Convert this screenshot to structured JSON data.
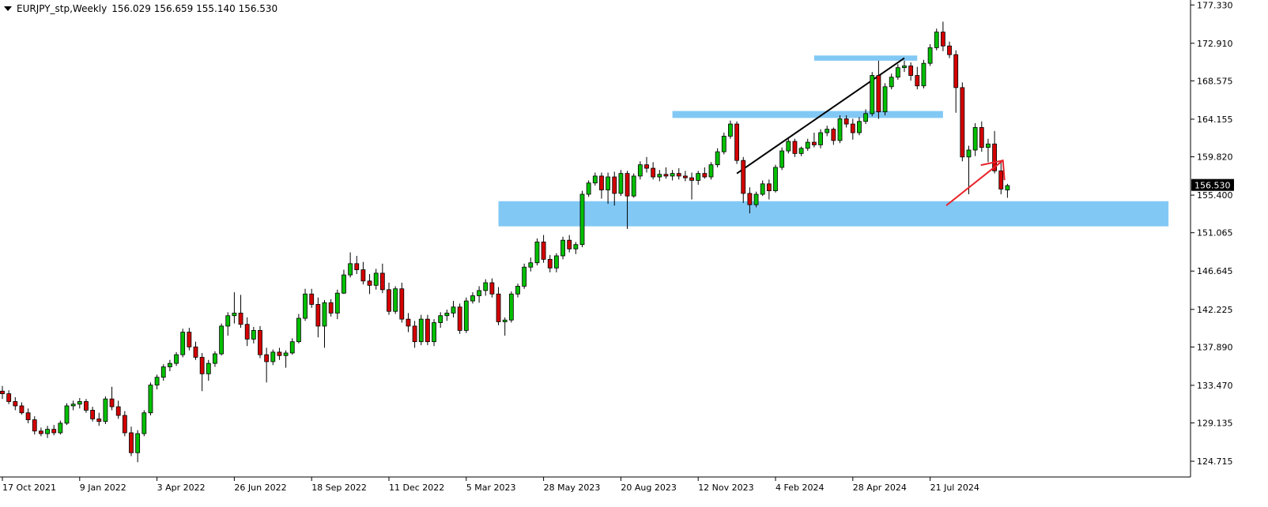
{
  "header": {
    "symbol": "EURJPY_stp,Weekly",
    "ohlc": "156.029 156.659 155.140 156.530"
  },
  "colors": {
    "bull": "#00c000",
    "bear": "#d40000",
    "zone": "#82c8f5",
    "trendline": "#000000",
    "arrow": "#e8232a",
    "price_tag": "#000000"
  },
  "chart_data": {
    "type": "candlestick",
    "title": "EURJPY_stp,Weekly",
    "ylim": [
      122.9,
      177.9
    ],
    "y_ticks": [
      "177.330",
      "172.910",
      "168.575",
      "164.155",
      "159.820",
      "155.400",
      "151.065",
      "146.645",
      "142.225",
      "137.890",
      "133.470",
      "129.135",
      "124.715"
    ],
    "x_ticks": [
      {
        "label": "17 Oct 2021",
        "index": 0
      },
      {
        "label": "9 Jan 2022",
        "index": 12
      },
      {
        "label": "3 Apr 2022",
        "index": 24
      },
      {
        "label": "26 Jun 2022",
        "index": 36
      },
      {
        "label": "18 Sep 2022",
        "index": 48
      },
      {
        "label": "11 Dec 2022",
        "index": 60
      },
      {
        "label": "5 Mar 2023",
        "index": 72
      },
      {
        "label": "28 May 2023",
        "index": 84
      },
      {
        "label": "20 Aug 2023",
        "index": 96
      },
      {
        "label": "12 Nov 2023",
        "index": 108
      },
      {
        "label": "4 Feb 2024",
        "index": 120
      },
      {
        "label": "28 Apr 2024",
        "index": 132
      },
      {
        "label": "21 Jul 2024",
        "index": 144
      }
    ],
    "current_price": "156.530",
    "candles": [
      [
        132.8,
        133.4,
        131.9,
        132.5
      ],
      [
        132.5,
        132.9,
        131.3,
        131.6
      ],
      [
        131.6,
        132.1,
        130.6,
        131.1
      ],
      [
        131.1,
        131.5,
        130.1,
        130.3
      ],
      [
        130.3,
        130.8,
        129.1,
        129.5
      ],
      [
        129.5,
        129.9,
        127.8,
        128.2
      ],
      [
        128.2,
        128.6,
        127.6,
        127.9
      ],
      [
        127.9,
        128.8,
        127.4,
        128.4
      ],
      [
        128.4,
        128.9,
        127.7,
        128.0
      ],
      [
        128.0,
        129.4,
        127.8,
        129.1
      ],
      [
        129.1,
        131.4,
        128.9,
        131.1
      ],
      [
        131.1,
        131.7,
        130.6,
        131.3
      ],
      [
        131.3,
        132.0,
        130.8,
        131.6
      ],
      [
        131.6,
        131.9,
        130.3,
        130.6
      ],
      [
        130.6,
        131.0,
        129.3,
        129.6
      ],
      [
        129.6,
        130.3,
        128.8,
        129.3
      ],
      [
        129.3,
        132.2,
        129.0,
        131.9
      ],
      [
        131.9,
        133.3,
        130.6,
        131.0
      ],
      [
        131.0,
        131.7,
        129.6,
        130.0
      ],
      [
        130.0,
        130.5,
        127.6,
        128.0
      ],
      [
        128.0,
        128.7,
        125.3,
        125.7
      ],
      [
        125.7,
        128.3,
        124.6,
        127.9
      ],
      [
        127.9,
        130.6,
        127.6,
        130.3
      ],
      [
        130.3,
        133.8,
        130.0,
        133.5
      ],
      [
        133.5,
        134.7,
        133.0,
        134.4
      ],
      [
        134.4,
        135.9,
        134.0,
        135.6
      ],
      [
        135.6,
        136.4,
        135.1,
        136.0
      ],
      [
        136.0,
        137.3,
        135.7,
        137.0
      ],
      [
        137.0,
        140.0,
        136.7,
        139.6
      ],
      [
        139.6,
        140.1,
        137.5,
        137.9
      ],
      [
        137.9,
        138.5,
        136.4,
        136.7
      ],
      [
        136.7,
        137.2,
        132.8,
        134.8
      ],
      [
        134.8,
        136.4,
        134.0,
        136.0
      ],
      [
        136.0,
        137.4,
        135.6,
        137.1
      ],
      [
        137.1,
        140.6,
        136.9,
        140.3
      ],
      [
        140.3,
        141.9,
        139.2,
        141.5
      ],
      [
        141.5,
        144.2,
        140.6,
        141.8
      ],
      [
        141.8,
        143.9,
        140.1,
        140.5
      ],
      [
        140.5,
        141.3,
        138.0,
        138.8
      ],
      [
        138.8,
        140.2,
        138.3,
        139.8
      ],
      [
        139.8,
        140.3,
        136.6,
        137.0
      ],
      [
        137.0,
        137.8,
        133.8,
        136.2
      ],
      [
        136.2,
        137.6,
        135.8,
        137.3
      ],
      [
        137.3,
        137.8,
        136.4,
        136.9
      ],
      [
        136.9,
        137.5,
        135.5,
        137.2
      ],
      [
        137.2,
        138.9,
        137.0,
        138.5
      ],
      [
        138.5,
        141.7,
        138.3,
        141.2
      ],
      [
        141.2,
        144.6,
        140.9,
        144.0
      ],
      [
        144.0,
        144.6,
        142.4,
        142.8
      ],
      [
        142.8,
        143.6,
        139.0,
        140.3
      ],
      [
        140.3,
        143.3,
        137.8,
        143.0
      ],
      [
        143.0,
        143.4,
        141.4,
        141.8
      ],
      [
        141.8,
        144.5,
        141.1,
        144.1
      ],
      [
        144.1,
        146.8,
        144.0,
        146.2
      ],
      [
        146.2,
        148.8,
        145.9,
        147.5
      ],
      [
        147.5,
        148.4,
        146.3,
        146.8
      ],
      [
        146.8,
        147.7,
        145.1,
        145.5
      ],
      [
        145.5,
        146.3,
        144.0,
        145.0
      ],
      [
        145.0,
        146.9,
        144.5,
        146.4
      ],
      [
        146.4,
        147.5,
        144.1,
        144.5
      ],
      [
        144.5,
        145.3,
        141.6,
        142.0
      ],
      [
        142.0,
        144.9,
        141.7,
        144.6
      ],
      [
        144.6,
        145.3,
        140.7,
        141.1
      ],
      [
        141.1,
        141.8,
        139.6,
        140.3
      ],
      [
        140.3,
        140.9,
        137.8,
        138.5
      ],
      [
        138.5,
        141.6,
        138.1,
        141.1
      ],
      [
        141.1,
        141.6,
        138.1,
        138.5
      ],
      [
        138.5,
        141.1,
        138.0,
        140.7
      ],
      [
        140.7,
        141.9,
        140.1,
        141.5
      ],
      [
        141.5,
        142.2,
        140.9,
        141.8
      ],
      [
        141.8,
        143.2,
        141.3,
        142.5
      ],
      [
        142.5,
        142.9,
        139.4,
        139.8
      ],
      [
        139.8,
        143.6,
        139.5,
        143.2
      ],
      [
        143.2,
        144.2,
        142.9,
        143.8
      ],
      [
        143.8,
        144.9,
        143.0,
        144.4
      ],
      [
        144.4,
        145.7,
        143.8,
        145.3
      ],
      [
        145.3,
        145.8,
        143.6,
        144.0
      ],
      [
        144.0,
        144.8,
        140.4,
        140.8
      ],
      [
        140.8,
        141.3,
        139.2,
        141.0
      ],
      [
        141.0,
        144.3,
        140.7,
        144.0
      ],
      [
        144.0,
        145.2,
        143.6,
        144.9
      ],
      [
        144.9,
        147.5,
        144.6,
        147.1
      ],
      [
        147.1,
        148.2,
        146.6,
        147.6
      ],
      [
        147.6,
        150.4,
        147.3,
        150.0
      ],
      [
        150.0,
        150.8,
        147.6,
        148.0
      ],
      [
        148.0,
        148.5,
        146.5,
        147.0
      ],
      [
        147.0,
        148.7,
        146.5,
        148.4
      ],
      [
        148.4,
        150.6,
        148.0,
        150.2
      ],
      [
        150.2,
        150.8,
        148.8,
        149.2
      ],
      [
        149.2,
        150.0,
        148.6,
        149.7
      ],
      [
        149.7,
        155.9,
        149.4,
        155.5
      ],
      [
        155.5,
        157.1,
        155.2,
        156.8
      ],
      [
        156.8,
        158.0,
        156.5,
        157.6
      ],
      [
        157.6,
        158.0,
        155.0,
        156.0
      ],
      [
        156.0,
        158.0,
        154.4,
        157.5
      ],
      [
        157.5,
        158.1,
        154.2,
        155.6
      ],
      [
        155.6,
        158.3,
        155.3,
        157.9
      ],
      [
        157.9,
        158.2,
        151.5,
        155.3
      ],
      [
        155.3,
        157.9,
        155.1,
        157.6
      ],
      [
        157.6,
        159.3,
        157.2,
        158.9
      ],
      [
        158.9,
        159.8,
        158.0,
        158.5
      ],
      [
        158.5,
        159.2,
        157.2,
        157.5
      ],
      [
        157.5,
        158.3,
        157.0,
        157.8
      ],
      [
        157.8,
        158.6,
        157.3,
        157.6
      ],
      [
        157.6,
        158.3,
        157.1,
        157.9
      ],
      [
        157.9,
        158.5,
        157.2,
        157.6
      ],
      [
        157.6,
        158.2,
        157.0,
        157.4
      ],
      [
        157.4,
        158.0,
        154.9,
        157.1
      ],
      [
        157.1,
        158.2,
        156.6,
        157.9
      ],
      [
        157.9,
        158.6,
        157.3,
        157.5
      ],
      [
        157.5,
        159.2,
        157.2,
        158.9
      ],
      [
        158.9,
        160.8,
        158.6,
        160.4
      ],
      [
        160.4,
        162.6,
        160.1,
        162.2
      ],
      [
        162.2,
        164.0,
        161.9,
        163.6
      ],
      [
        163.6,
        163.9,
        159.0,
        159.4
      ],
      [
        159.4,
        159.8,
        154.5,
        155.6
      ],
      [
        155.6,
        156.3,
        153.3,
        154.3
      ],
      [
        154.3,
        155.8,
        154.0,
        155.5
      ],
      [
        155.5,
        157.1,
        155.3,
        156.7
      ],
      [
        156.7,
        157.2,
        154.9,
        155.9
      ],
      [
        155.9,
        158.9,
        155.7,
        158.6
      ],
      [
        158.6,
        160.9,
        158.3,
        160.5
      ],
      [
        160.5,
        162.0,
        160.2,
        161.6
      ],
      [
        161.6,
        161.9,
        159.8,
        160.2
      ],
      [
        160.2,
        161.0,
        159.9,
        160.8
      ],
      [
        160.8,
        161.9,
        160.5,
        161.5
      ],
      [
        161.5,
        162.6,
        160.9,
        161.2
      ],
      [
        161.2,
        163.0,
        160.8,
        162.6
      ],
      [
        162.6,
        163.4,
        162.2,
        163.0
      ],
      [
        163.0,
        163.2,
        161.2,
        161.7
      ],
      [
        161.7,
        164.6,
        161.4,
        164.2
      ],
      [
        164.2,
        164.6,
        163.2,
        163.6
      ],
      [
        163.6,
        164.2,
        161.8,
        162.6
      ],
      [
        162.6,
        164.4,
        162.3,
        163.9
      ],
      [
        163.9,
        165.3,
        163.6,
        164.8
      ],
      [
        164.8,
        169.6,
        164.5,
        169.2
      ],
      [
        169.2,
        170.9,
        164.2,
        165.0
      ],
      [
        165.0,
        168.3,
        164.6,
        167.9
      ],
      [
        167.9,
        169.4,
        167.6,
        169.0
      ],
      [
        169.0,
        170.5,
        168.7,
        170.1
      ],
      [
        170.1,
        170.9,
        169.6,
        170.3
      ],
      [
        170.3,
        170.7,
        168.6,
        169.2
      ],
      [
        169.2,
        170.2,
        167.6,
        168.0
      ],
      [
        168.0,
        171.0,
        167.7,
        170.6
      ],
      [
        170.6,
        172.8,
        170.3,
        172.4
      ],
      [
        172.4,
        174.6,
        172.1,
        174.2
      ],
      [
        174.2,
        175.4,
        172.0,
        172.6
      ],
      [
        172.6,
        173.1,
        171.2,
        171.6
      ],
      [
        171.6,
        172.1,
        164.9,
        167.8
      ],
      [
        167.8,
        168.4,
        159.3,
        159.8
      ],
      [
        159.8,
        161.1,
        155.5,
        160.6
      ],
      [
        160.6,
        163.7,
        159.9,
        163.2
      ],
      [
        163.2,
        163.9,
        160.4,
        160.9
      ],
      [
        160.9,
        161.9,
        159.2,
        161.3
      ],
      [
        161.3,
        162.8,
        157.9,
        158.2
      ],
      [
        158.2,
        159.2,
        155.5,
        156.1
      ],
      [
        156.0,
        156.7,
        155.1,
        156.5
      ]
    ]
  }
}
